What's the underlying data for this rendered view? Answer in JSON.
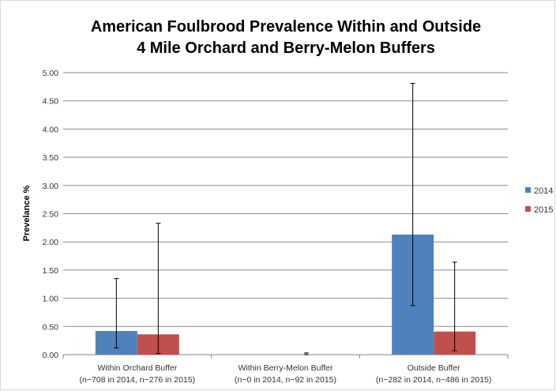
{
  "chart_data": {
    "type": "bar",
    "title_lines": [
      "American Foulbrood Prevalence Within and Outside",
      "4 Mile Orchard and Berry-Melon Buffers"
    ],
    "ylabel": "Prevelance %",
    "xlabel": "",
    "ylim": [
      0,
      5
    ],
    "yticks": [
      "0.00",
      "0.50",
      "1.00",
      "1.50",
      "2.00",
      "2.50",
      "3.00",
      "3.50",
      "4.00",
      "4.50",
      "5.00"
    ],
    "grid": true,
    "legend_position": "right",
    "categories": [
      [
        "Within Orchard Buffer",
        "(n−708 in 2014, n−276 in 2015)"
      ],
      [
        "Within Berry-Melon Buffer",
        "(n−0 in 2014, n−92 in 2015)"
      ],
      [
        "Outside Buffer",
        "(n−282 in 2014, n−486 in 2015)"
      ]
    ],
    "series": [
      {
        "name": "2014",
        "color": "#4f81bd",
        "values": [
          0.42,
          0,
          2.13
        ],
        "err_low": [
          0.12,
          null,
          0.87
        ],
        "err_high": [
          1.35,
          null,
          4.81
        ]
      },
      {
        "name": "2015",
        "color": "#c0504d",
        "values": [
          0.36,
          0,
          0.41
        ],
        "err_low": [
          0.02,
          0.0,
          0.07
        ],
        "err_high": [
          2.33,
          0.03,
          1.64
        ]
      }
    ]
  }
}
